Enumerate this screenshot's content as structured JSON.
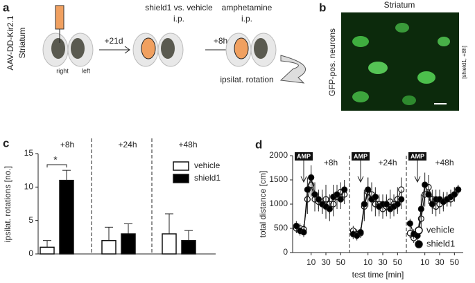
{
  "panel_a": {
    "label": "a",
    "construct": "AAV-DD-Kir2.1",
    "region": "Striatum",
    "right": "right",
    "left": "left",
    "arrow1": "+21d",
    "step1": "shield1 vs. vehicle",
    "step1_route": "i.p.",
    "arrow2": "+8h",
    "step2": "amphetamine",
    "step2_route": "i.p.",
    "result": "ipsilat. rotation"
  },
  "panel_b": {
    "label": "b",
    "title": "Striatum",
    "ylabel": "GFP-pos. neurons",
    "side_label": "[shield1, +8h]"
  },
  "chart_data": [
    {
      "type": "bar",
      "panel_label": "c",
      "ylabel": "ipsilat. rotations [no.]",
      "categories": [
        "+8h",
        "+24h",
        "+48h"
      ],
      "series": [
        {
          "name": "vehicle",
          "color": "#ffffff",
          "values": [
            1,
            2,
            3
          ],
          "errors": [
            1,
            2,
            3
          ]
        },
        {
          "name": "shield1",
          "color": "#000000",
          "values": [
            11,
            3,
            2
          ],
          "errors": [
            1.5,
            1.5,
            1.5
          ]
        }
      ],
      "annotation": "*",
      "ylim": [
        0,
        15
      ],
      "yticks": [
        0,
        5,
        10,
        15
      ]
    },
    {
      "type": "line",
      "panel_label": "d",
      "ylabel": "total distance [cm]",
      "xlabel": "test time [min]",
      "segments": [
        {
          "title": "+8h",
          "annotation": "AMP",
          "xticks": [
            10,
            30,
            50
          ]
        },
        {
          "title": "+24h",
          "annotation": "AMP",
          "xticks": [
            10,
            30,
            50
          ]
        },
        {
          "title": "+48h",
          "annotation": "AMP",
          "xticks": [
            10,
            30,
            50
          ]
        }
      ],
      "x": [
        -10,
        -5,
        0,
        5,
        10,
        15,
        20,
        25,
        30,
        35,
        40,
        45,
        50,
        55
      ],
      "series": [
        {
          "name": "vehicle",
          "color": "#ffffff",
          "values": [
            [
              500,
              500,
              480,
              1100,
              1400,
              1100,
              1050,
              1050,
              1100,
              1000,
              1000,
              1150,
              1250,
              1200
            ],
            [
              450,
              380,
              400,
              950,
              1250,
              1200,
              1000,
              1000,
              900,
              950,
              1050,
              1000,
              1100,
              1300
            ],
            [
              400,
              300,
              350,
              700,
              1200,
              1350,
              1100,
              950,
              1000,
              1050,
              1100,
              1100,
              1200,
              1300
            ]
          ],
          "errors": [
            [
              100,
              100,
              100,
              300,
              250,
              250,
              200,
              250,
              300,
              200,
              250,
              250,
              200,
              200
            ],
            [
              100,
              100,
              100,
              300,
              300,
              250,
              250,
              200,
              200,
              200,
              250,
              200,
              250,
              250
            ],
            [
              100,
              100,
              100,
              300,
              250,
              250,
              200,
              200,
              200,
              200,
              150,
              150,
              150,
              100
            ]
          ]
        },
        {
          "name": "shield1",
          "color": "#000000",
          "values": [
            [
              550,
              450,
              420,
              1300,
              1550,
              1200,
              1100,
              1000,
              950,
              900,
              1150,
              1200,
              1100,
              1300
            ],
            [
              380,
              350,
              420,
              1000,
              1300,
              1100,
              1150,
              950,
              1000,
              1000,
              900,
              950,
              1000,
              1100
            ],
            [
              600,
              380,
              350,
              900,
              1400,
              1200,
              1000,
              1100,
              1100,
              1050,
              1100,
              1150,
              1200,
              1300
            ]
          ],
          "errors": [
            [
              100,
              100,
              100,
              250,
              250,
              250,
              200,
              200,
              250,
              250,
              250,
              200,
              200,
              200
            ],
            [
              100,
              100,
              100,
              300,
              250,
              250,
              200,
              200,
              200,
              200,
              200,
              200,
              200,
              200
            ],
            [
              100,
              100,
              100,
              300,
              250,
              200,
              200,
              200,
              200,
              150,
              150,
              150,
              150,
              100
            ]
          ]
        }
      ],
      "xlim": [
        -15,
        60
      ],
      "ylim": [
        0,
        2000
      ],
      "yticks": [
        0,
        500,
        1000,
        1500,
        2000
      ]
    }
  ]
}
